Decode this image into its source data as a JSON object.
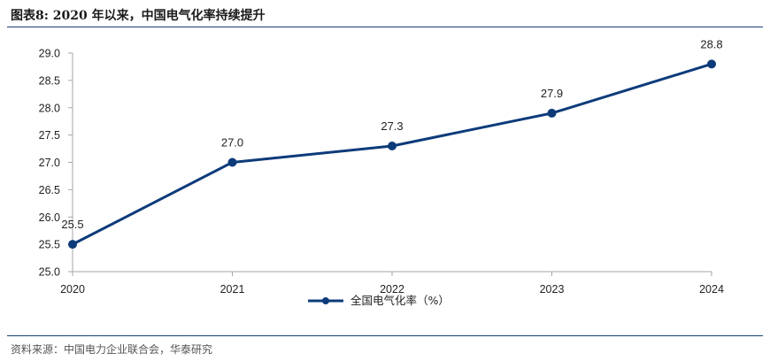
{
  "header": {
    "title": "图表8:  2020 年以来，中国电气化率持续提升"
  },
  "footer": {
    "source": "资料来源：中国电力企业联合会，华泰研究"
  },
  "colors": {
    "series": "#0d3b7a",
    "axis": "#a6a6a6",
    "rule": "#1a3f7a"
  },
  "chart_data": {
    "type": "line",
    "title": "",
    "xlabel": "",
    "ylabel": "",
    "categories": [
      "2020",
      "2021",
      "2022",
      "2023",
      "2024"
    ],
    "ylim": [
      25.0,
      29.0
    ],
    "yticks": [
      "25.0",
      "25.5",
      "26.0",
      "26.5",
      "27.0",
      "27.5",
      "28.0",
      "28.5",
      "29.0"
    ],
    "grid": false,
    "legend_position": "bottom",
    "series": [
      {
        "name": "全国电气化率（%）",
        "values": [
          25.5,
          27.0,
          27.3,
          27.9,
          28.8
        ],
        "labels": [
          "25.5",
          "27.0",
          "27.3",
          "27.9",
          "28.8"
        ]
      }
    ]
  }
}
